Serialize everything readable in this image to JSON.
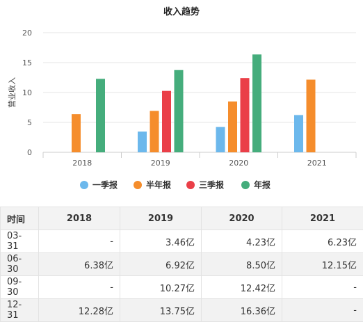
{
  "chart_data": {
    "type": "bar",
    "title": "收入趋势",
    "ylabel": "营业收入",
    "xlabel": "",
    "categories": [
      "2018",
      "2019",
      "2020",
      "2021"
    ],
    "ylim": [
      0,
      20
    ],
    "yticks": [
      0,
      5,
      10,
      15,
      20
    ],
    "grid": true,
    "legend_position": "bottom",
    "series": [
      {
        "name": "一季报",
        "color": "#6cb8ec",
        "values": [
          null,
          3.46,
          4.23,
          6.23
        ]
      },
      {
        "name": "半年报",
        "color": "#f58d2c",
        "values": [
          6.38,
          6.92,
          8.5,
          12.15
        ]
      },
      {
        "name": "三季报",
        "color": "#ea3f48",
        "values": [
          null,
          10.27,
          12.42,
          null
        ]
      },
      {
        "name": "年报",
        "color": "#45ad7c",
        "values": [
          12.28,
          13.75,
          16.36,
          null
        ]
      }
    ]
  },
  "table": {
    "headers": [
      "时间",
      "2018",
      "2019",
      "2020",
      "2021"
    ],
    "rows": [
      [
        "03-31",
        "-",
        "3.46亿",
        "4.23亿",
        "6.23亿"
      ],
      [
        "06-30",
        "6.38亿",
        "6.92亿",
        "8.50亿",
        "12.15亿"
      ],
      [
        "09-30",
        "-",
        "10.27亿",
        "12.42亿",
        "-"
      ],
      [
        "12-31",
        "12.28亿",
        "13.75亿",
        "16.36亿",
        "-"
      ]
    ]
  }
}
